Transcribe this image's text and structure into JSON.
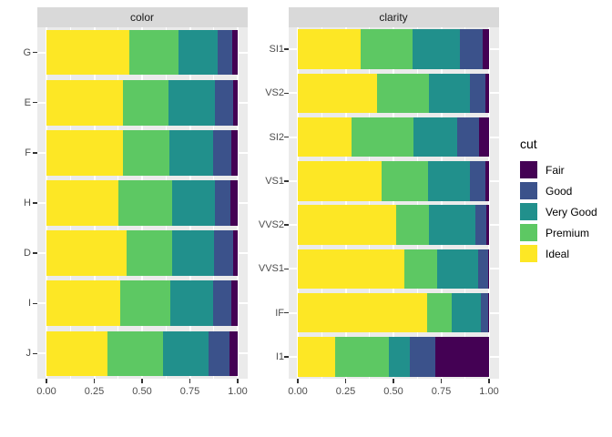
{
  "figure": {
    "background": "#FFFFFF",
    "panel_background": "#EBEBEB",
    "strip_background": "#D9D9D9",
    "grid_color": "#FFFFFF",
    "axis_text_color": "#4D4D4D",
    "tick_color": "#333333"
  },
  "legend": {
    "title": "cut",
    "entries": [
      {
        "label": "Fair",
        "color": "#440154"
      },
      {
        "label": "Good",
        "color": "#3B528B"
      },
      {
        "label": "Very Good",
        "color": "#21908C"
      },
      {
        "label": "Premium",
        "color": "#5DC863"
      },
      {
        "label": "Ideal",
        "color": "#FDE725"
      }
    ]
  },
  "chart_data": [
    {
      "type": "bar",
      "orientation": "horizontal",
      "stacked": true,
      "normalized": true,
      "facet_title": "color",
      "categories": [
        "G",
        "E",
        "F",
        "H",
        "D",
        "I",
        "J"
      ],
      "stack_order": [
        "Ideal",
        "Premium",
        "Very Good",
        "Good",
        "Fair"
      ],
      "series": [
        {
          "name": "Ideal",
          "values": [
            0.433,
            0.398,
            0.401,
            0.375,
            0.418,
            0.386,
            0.319
          ]
        },
        {
          "name": "Premium",
          "values": [
            0.259,
            0.239,
            0.244,
            0.284,
            0.237,
            0.263,
            0.288
          ]
        },
        {
          "name": "Very Good",
          "values": [
            0.204,
            0.245,
            0.227,
            0.22,
            0.223,
            0.222,
            0.241
          ]
        },
        {
          "name": "Good",
          "values": [
            0.077,
            0.095,
            0.095,
            0.085,
            0.098,
            0.096,
            0.109
          ]
        },
        {
          "name": "Fair",
          "values": [
            0.028,
            0.023,
            0.033,
            0.036,
            0.024,
            0.032,
            0.042
          ]
        }
      ],
      "x_ticks": [
        "0.00",
        "0.25",
        "0.50",
        "0.75",
        "1.00"
      ],
      "x_tick_values": [
        0,
        0.25,
        0.5,
        0.75,
        1.0
      ],
      "xlim": [
        0,
        1
      ],
      "grid": true
    },
    {
      "type": "bar",
      "orientation": "horizontal",
      "stacked": true,
      "normalized": true,
      "facet_title": "clarity",
      "categories": [
        "SI1",
        "VS2",
        "SI2",
        "VS1",
        "VVS2",
        "VVS1",
        "IF",
        "I1"
      ],
      "stack_order": [
        "Ideal",
        "Premium",
        "Very Good",
        "Good",
        "Fair"
      ],
      "series": [
        {
          "name": "Ideal",
          "values": [
            0.328,
            0.414,
            0.283,
            0.439,
            0.514,
            0.56,
            0.677,
            0.197
          ]
        },
        {
          "name": "Premium",
          "values": [
            0.274,
            0.274,
            0.321,
            0.243,
            0.172,
            0.169,
            0.128,
            0.277
          ]
        },
        {
          "name": "Very Good",
          "values": [
            0.248,
            0.211,
            0.228,
            0.217,
            0.244,
            0.216,
            0.15,
            0.113
          ]
        },
        {
          "name": "Good",
          "values": [
            0.119,
            0.08,
            0.118,
            0.079,
            0.056,
            0.051,
            0.04,
            0.13
          ]
        },
        {
          "name": "Fair",
          "values": [
            0.031,
            0.021,
            0.051,
            0.021,
            0.014,
            0.005,
            0.005,
            0.283
          ]
        }
      ],
      "x_ticks": [
        "0.00",
        "0.25",
        "0.50",
        "0.75",
        "1.00"
      ],
      "x_tick_values": [
        0,
        0.25,
        0.5,
        0.75,
        1.0
      ],
      "xlim": [
        0,
        1
      ],
      "grid": true
    }
  ]
}
